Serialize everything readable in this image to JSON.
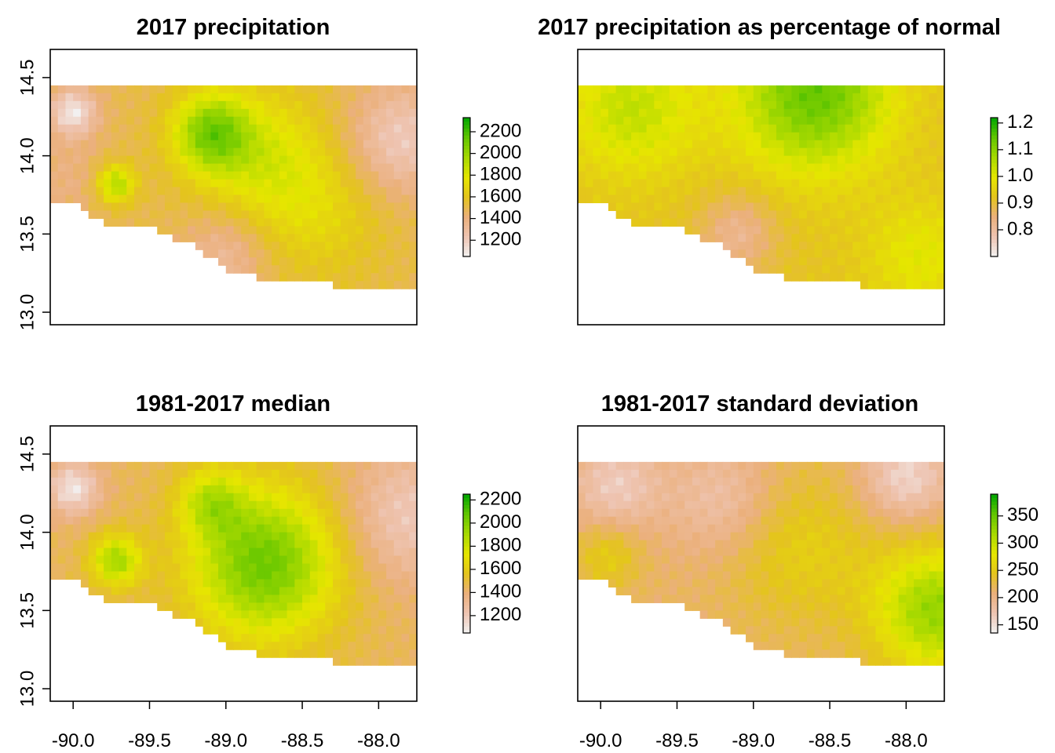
{
  "chart_data": [
    {
      "type": "heatmap",
      "title": "2017 precipitation",
      "xlim": [
        -90.15,
        -87.75
      ],
      "ylim": [
        12.92,
        14.68
      ],
      "x_ticks": [],
      "x_tick_labels": [],
      "y_ticks": [
        13.0,
        13.5,
        14.0,
        14.5
      ],
      "y_tick_labels": [
        "13.0",
        "13.5",
        "14.0",
        "14.5"
      ],
      "legend": {
        "placement": "right",
        "range": [
          1050,
          2330
        ],
        "ticks": [
          1200,
          1400,
          1600,
          1800,
          2000,
          2200
        ],
        "labels": [
          "1200",
          "1400",
          "1600",
          "1800",
          "2000",
          "2200"
        ]
      },
      "colors": [
        "#f2f2f2",
        "#eec4b2",
        "#ebb07c",
        "#e4c41d",
        "#e6e600",
        "#a7d900",
        "#63c600",
        "#00a600"
      ],
      "field": {
        "base": 1500,
        "bumps": [
          {
            "x": -89.1,
            "y": 14.15,
            "amp": 500,
            "s": 0.18
          },
          {
            "x": -89.72,
            "y": 13.82,
            "amp": 450,
            "s": 0.09
          },
          {
            "x": -88.75,
            "y": 13.98,
            "amp": 300,
            "s": 0.32
          },
          {
            "x": -88.35,
            "y": 13.6,
            "amp": 150,
            "s": 0.3
          },
          {
            "x": -90.0,
            "y": 14.28,
            "amp": -400,
            "s": 0.11
          },
          {
            "x": -87.85,
            "y": 14.1,
            "amp": -300,
            "s": 0.25
          },
          {
            "x": -89.0,
            "y": 13.38,
            "amp": -200,
            "s": 0.2
          },
          {
            "x": -90.05,
            "y": 13.85,
            "amp": -100,
            "s": 0.2
          }
        ]
      }
    },
    {
      "type": "heatmap",
      "title": "2017 precipitation as percentage of normal",
      "xlim": [
        -90.15,
        -87.75
      ],
      "ylim": [
        12.92,
        14.68
      ],
      "x_ticks": [],
      "x_tick_labels": [],
      "y_ticks": [],
      "y_tick_labels": [],
      "legend": {
        "placement": "right",
        "range": [
          0.7,
          1.22
        ],
        "ticks": [
          0.8,
          0.9,
          1.0,
          1.1,
          1.2
        ],
        "labels": [
          "0.8",
          "0.9",
          "1.0",
          "1.1",
          "1.2"
        ]
      },
      "colors": [
        "#f2f2f2",
        "#eec4b2",
        "#ebb07c",
        "#e4c41d",
        "#e6e600",
        "#a7d900",
        "#63c600",
        "#00a600"
      ],
      "field": {
        "base": 0.92,
        "bumps": [
          {
            "x": -88.6,
            "y": 14.4,
            "amp": 0.22,
            "s": 0.35
          },
          {
            "x": -89.8,
            "y": 14.3,
            "amp": 0.12,
            "s": 0.3
          },
          {
            "x": -89.1,
            "y": 13.5,
            "amp": -0.1,
            "s": 0.18
          },
          {
            "x": -87.9,
            "y": 13.35,
            "amp": 0.08,
            "s": 0.25
          }
        ]
      }
    },
    {
      "type": "heatmap",
      "title": "1981-2017 median",
      "xlim": [
        -90.15,
        -87.75
      ],
      "ylim": [
        12.92,
        14.68
      ],
      "x_ticks": [],
      "x_tick_labels": [],
      "y_ticks": [
        13.0,
        13.5,
        14.0,
        14.5
      ],
      "y_tick_labels": [
        "13.0",
        "13.5",
        "14.0",
        "14.5"
      ],
      "legend": {
        "placement": "right",
        "range": [
          1050,
          2250
        ],
        "ticks": [
          1200,
          1400,
          1600,
          1800,
          2000,
          2200
        ],
        "labels": [
          "1200",
          "1400",
          "1600",
          "1800",
          "2000",
          "2200"
        ]
      },
      "colors": [
        "#f2f2f2",
        "#eec4b2",
        "#ebb07c",
        "#e4c41d",
        "#e6e600",
        "#a7d900",
        "#63c600",
        "#00a600"
      ],
      "field": {
        "base": 1450,
        "bumps": [
          {
            "x": -88.75,
            "y": 13.8,
            "amp": 600,
            "s": 0.35
          },
          {
            "x": -89.1,
            "y": 14.2,
            "amp": 300,
            "s": 0.15
          },
          {
            "x": -89.72,
            "y": 13.82,
            "amp": 450,
            "s": 0.12
          },
          {
            "x": -90.0,
            "y": 14.28,
            "amp": -350,
            "s": 0.12
          },
          {
            "x": -87.8,
            "y": 14.1,
            "amp": -250,
            "s": 0.3
          }
        ]
      }
    },
    {
      "type": "heatmap",
      "title": "1981-2017 standard deviation",
      "xlim": [
        -90.15,
        -87.75
      ],
      "ylim": [
        12.92,
        14.68
      ],
      "x_ticks": [],
      "x_tick_labels": [],
      "y_ticks": [],
      "y_tick_labels": [],
      "legend": {
        "placement": "right",
        "range": [
          135,
          390
        ],
        "ticks": [
          150,
          200,
          250,
          300,
          350
        ],
        "labels": [
          "150",
          "200",
          "250",
          "300",
          "350"
        ]
      },
      "colors": [
        "#f2f2f2",
        "#eec4b2",
        "#ebb07c",
        "#e4c41d",
        "#e6e600",
        "#a7d900",
        "#63c600",
        "#00a600"
      ],
      "field": {
        "base": 215,
        "bumps": [
          {
            "x": -87.8,
            "y": 13.5,
            "amp": 110,
            "s": 0.3
          },
          {
            "x": -88.0,
            "y": 14.35,
            "amp": -60,
            "s": 0.2
          },
          {
            "x": -89.9,
            "y": 14.3,
            "amp": -50,
            "s": 0.2
          },
          {
            "x": -89.2,
            "y": 14.2,
            "amp": -40,
            "s": 0.25
          },
          {
            "x": -88.7,
            "y": 13.9,
            "amp": 40,
            "s": 0.35
          },
          {
            "x": -89.95,
            "y": 13.85,
            "amp": 40,
            "s": 0.15
          }
        ]
      }
    }
  ],
  "shared_x_axis": {
    "ticks": [
      -90.0,
      -89.5,
      -89.0,
      -88.5,
      -88.0
    ],
    "labels": [
      "-90.0",
      "-89.5",
      "-89.0",
      "-88.5",
      "-88.0"
    ]
  }
}
